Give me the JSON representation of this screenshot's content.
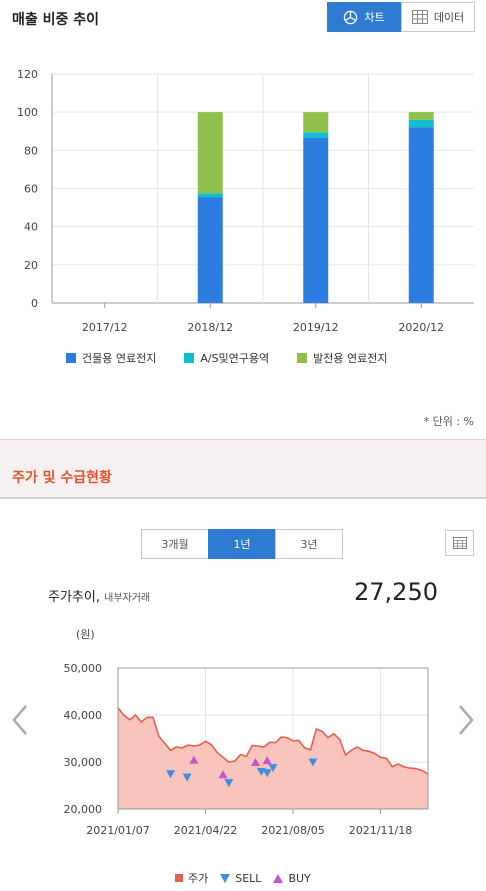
{
  "section1": {
    "title": "매출 비중 추이",
    "unit_note": "* 단위 : %"
  },
  "toggle": {
    "chart_label": "차트",
    "data_label": "데이터"
  },
  "section2": {
    "title": "주가 및 수급현황"
  },
  "period_tabs": [
    {
      "label": "3개월",
      "active": false
    },
    {
      "label": "1년",
      "active": true
    },
    {
      "label": "3년",
      "active": false
    }
  ],
  "price": {
    "title": "주가추이,",
    "subtitle": "내부자거래",
    "current": "27,250"
  },
  "colors": {
    "building": "#2b7de0",
    "as": "#12bdd0",
    "power": "#8ec04a",
    "price_fill": "#f8c4bb",
    "price_line": "#e8604e",
    "sell": "#3a8ee6",
    "buy": "#c454cf",
    "accent": "#2f7bd2"
  },
  "chart_data": [
    {
      "type": "bar",
      "stacked": true,
      "categories": [
        "2017/12",
        "2018/12",
        "2019/12",
        "2020/12"
      ],
      "series": [
        {
          "name": "건물용 연료전지",
          "values": [
            0,
            55.5,
            86.5,
            92
          ]
        },
        {
          "name": "A/S및연구용역",
          "values": [
            0,
            2,
            3,
            4
          ]
        },
        {
          "name": "발전용 연료전지",
          "values": [
            0,
            42.5,
            10.5,
            4
          ]
        }
      ],
      "ylim": [
        0,
        120
      ],
      "yticks": [
        0,
        20,
        40,
        60,
        80,
        100,
        120
      ],
      "grid": true,
      "legend": "bottom"
    },
    {
      "type": "area",
      "ylabel": "(원)",
      "ylim": [
        20000,
        50000
      ],
      "yticks": [
        "20,000",
        "30,000",
        "40,000",
        "50,000"
      ],
      "ytick_values": [
        20000,
        30000,
        40000,
        50000
      ],
      "xlim": [
        "2021-01-07",
        "2022-01-14"
      ],
      "xticks": [
        "2021/01/07",
        "2021/04/22",
        "2021/08/05",
        "2021/11/18"
      ],
      "xtick_dates": [
        "2021-01-07",
        "2021-04-22",
        "2021-08-05",
        "2021-11-18"
      ],
      "series_names": [
        "주가",
        "SELL",
        "BUY"
      ],
      "price": [
        [
          "2021-01-07",
          41500
        ],
        [
          "2021-01-14",
          40000
        ],
        [
          "2021-01-21",
          39000
        ],
        [
          "2021-01-28",
          40000
        ],
        [
          "2021-02-04",
          38500
        ],
        [
          "2021-02-11",
          39500
        ],
        [
          "2021-02-18",
          39500
        ],
        [
          "2021-02-25",
          35500
        ],
        [
          "2021-03-04",
          34000
        ],
        [
          "2021-03-11",
          32500
        ],
        [
          "2021-03-18",
          33200
        ],
        [
          "2021-03-25",
          33000
        ],
        [
          "2021-04-01",
          33600
        ],
        [
          "2021-04-08",
          33400
        ],
        [
          "2021-04-15",
          33600
        ],
        [
          "2021-04-22",
          34400
        ],
        [
          "2021-04-29",
          33700
        ],
        [
          "2021-05-06",
          32000
        ],
        [
          "2021-05-13",
          31000
        ],
        [
          "2021-05-20",
          30000
        ],
        [
          "2021-05-27",
          30200
        ],
        [
          "2021-06-03",
          31600
        ],
        [
          "2021-06-10",
          31200
        ],
        [
          "2021-06-17",
          33500
        ],
        [
          "2021-06-24",
          33400
        ],
        [
          "2021-07-01",
          33200
        ],
        [
          "2021-07-08",
          34200
        ],
        [
          "2021-07-15",
          34100
        ],
        [
          "2021-07-22",
          35300
        ],
        [
          "2021-07-29",
          35200
        ],
        [
          "2021-08-05",
          34500
        ],
        [
          "2021-08-12",
          34600
        ],
        [
          "2021-08-19",
          33000
        ],
        [
          "2021-08-26",
          32600
        ],
        [
          "2021-09-02",
          37000
        ],
        [
          "2021-09-09",
          36500
        ],
        [
          "2021-09-16",
          35200
        ],
        [
          "2021-09-23",
          36000
        ],
        [
          "2021-09-30",
          34800
        ],
        [
          "2021-10-07",
          31500
        ],
        [
          "2021-10-14",
          32500
        ],
        [
          "2021-10-21",
          33200
        ],
        [
          "2021-10-28",
          32500
        ],
        [
          "2021-11-04",
          32300
        ],
        [
          "2021-11-11",
          31800
        ],
        [
          "2021-11-18",
          31000
        ],
        [
          "2021-11-25",
          30800
        ],
        [
          "2021-12-02",
          29000
        ],
        [
          "2021-12-09",
          29600
        ],
        [
          "2021-12-16",
          29000
        ],
        [
          "2021-12-23",
          28700
        ],
        [
          "2021-12-30",
          28600
        ],
        [
          "2022-01-07",
          28200
        ],
        [
          "2022-01-14",
          27400
        ]
      ],
      "sell": [
        [
          "2021-03-11",
          27400
        ],
        [
          "2021-03-31",
          26700
        ],
        [
          "2021-05-20",
          25500
        ],
        [
          "2021-06-28",
          27900
        ],
        [
          "2021-07-05",
          27600
        ],
        [
          "2021-07-12",
          28700
        ],
        [
          "2021-08-29",
          29900
        ]
      ],
      "buy": [
        [
          "2021-04-08",
          30500
        ],
        [
          "2021-05-13",
          27400
        ],
        [
          "2021-06-21",
          30000
        ],
        [
          "2021-07-05",
          30400
        ]
      ],
      "grid": true,
      "legend": "bottom"
    }
  ]
}
